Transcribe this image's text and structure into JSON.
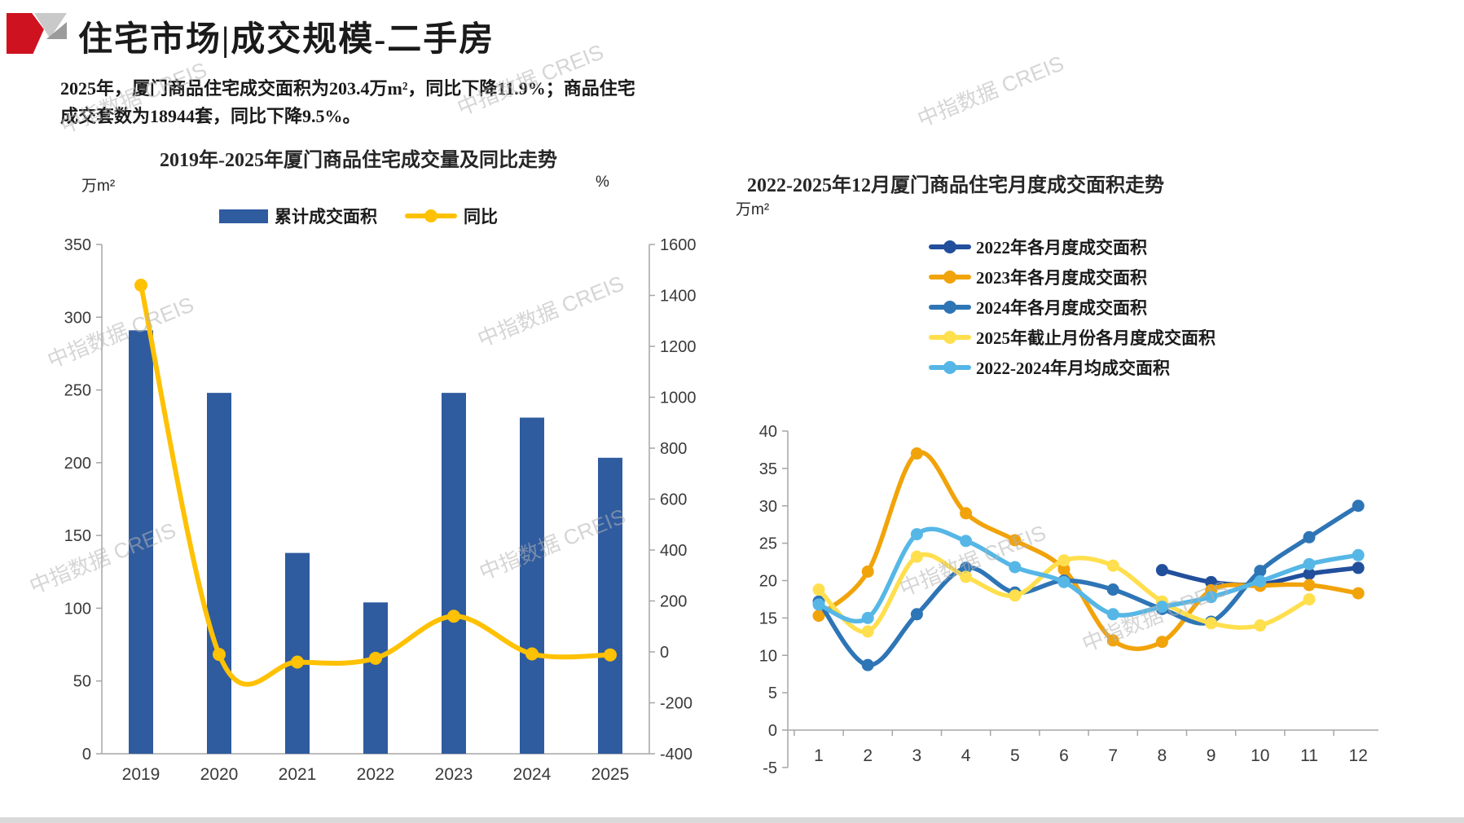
{
  "header": {
    "title": "住宅市场|成交规模-二手房"
  },
  "summary": {
    "text": "2025年，厦门商品住宅成交面积为203.4万m²，同比下降11.9%；商品住宅成交套数为18944套，同比下降9.5%。"
  },
  "watermark": {
    "text": "中指数据 CREIS"
  },
  "chart_data": [
    {
      "type": "bar+line",
      "title": "2019年-2025年厦门商品住宅成交量及同比走势",
      "legend_position": "top",
      "categories": [
        "2019",
        "2020",
        "2021",
        "2022",
        "2023",
        "2024",
        "2025"
      ],
      "left_axis": {
        "unit": "万m²",
        "min": 0,
        "max": 350,
        "step": 50
      },
      "right_axis": {
        "unit": "%",
        "min": -400,
        "max": 1600,
        "step": 200
      },
      "series": [
        {
          "name": "累计成交面积",
          "type": "bar",
          "axis": "left",
          "color": "#2F5B9F",
          "values": [
            291,
            248,
            138,
            104,
            248,
            231,
            203.4
          ]
        },
        {
          "name": "同比",
          "type": "line",
          "axis": "right",
          "color": "#FFC104",
          "values": [
            1440,
            -10,
            -40,
            -25,
            140,
            -8,
            -11.9
          ]
        }
      ]
    },
    {
      "type": "line",
      "title": "2022-2025年12月厦门商品住宅月度成交面积走势",
      "legend_position": "top",
      "y_axis": {
        "unit": "万m²",
        "min": -5,
        "max": 40,
        "step": 5
      },
      "x": [
        1,
        2,
        3,
        4,
        5,
        6,
        7,
        8,
        9,
        10,
        11,
        12
      ],
      "series": [
        {
          "name": "2022年各月度成交面积",
          "color": "#224F9C",
          "values": [
            null,
            null,
            null,
            null,
            null,
            null,
            null,
            21.4,
            19.8,
            19.5,
            20.9,
            21.7
          ]
        },
        {
          "name": "2023年各月度成交面积",
          "color": "#F1A30A",
          "values": [
            15.3,
            21.2,
            37,
            29,
            25.4,
            21.5,
            12,
            11.8,
            18.7,
            19.3,
            19.4,
            18.3
          ]
        },
        {
          "name": "2024年各月度成交面积",
          "color": "#2E75B6",
          "values": [
            17.2,
            8.7,
            15.5,
            21.7,
            18.4,
            20,
            18.8,
            16.2,
            14.5,
            21.3,
            25.8,
            30
          ]
        },
        {
          "name": "2025年截止月份各月度成交面积",
          "color": "#FFDF4D",
          "values": [
            18.8,
            13.2,
            23.2,
            20.5,
            18,
            22.7,
            22,
            17.2,
            14.3,
            14,
            17.5,
            null
          ]
        },
        {
          "name": "2022-2024年月均成交面积",
          "color": "#56B7E6",
          "values": [
            16.8,
            15,
            26.2,
            25.3,
            21.8,
            19.8,
            15.5,
            16.5,
            17.8,
            19.9,
            22.2,
            23.4
          ]
        }
      ]
    }
  ]
}
